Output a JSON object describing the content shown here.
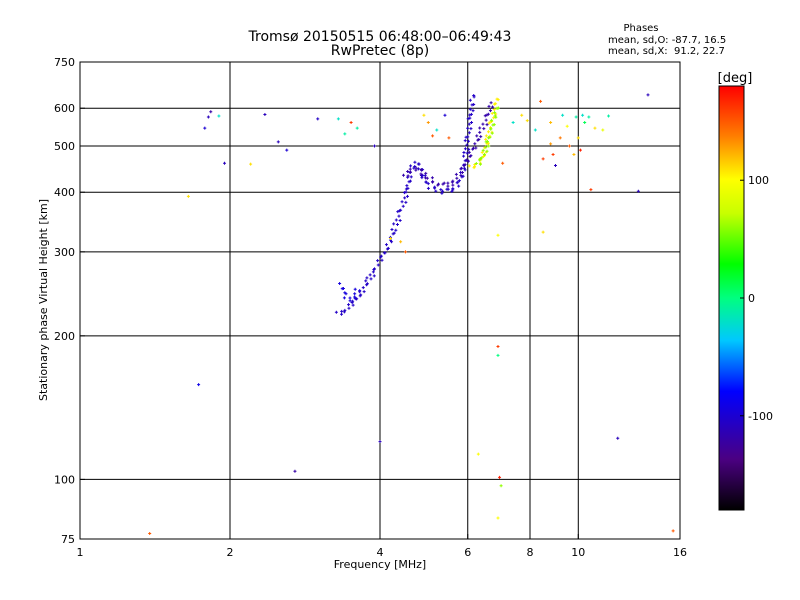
{
  "chart_data": {
    "type": "scatter",
    "title": "Tromsø 20150515 06:48:00–06:49:43",
    "subtitle": "RwPretec (8p)",
    "xlabel": "Frequency [MHz]",
    "ylabel": "Stationary phase Virtual Height [km]",
    "x_scale": "log",
    "y_scale": "log",
    "xlim": [
      1,
      16
    ],
    "ylim": [
      75,
      750
    ],
    "x_ticks": [
      {
        "value": 1,
        "label": "1"
      },
      {
        "value": 2,
        "label": "2"
      },
      {
        "value": 4,
        "label": "4"
      },
      {
        "value": 6,
        "label": "6"
      },
      {
        "value": 8,
        "label": "8"
      },
      {
        "value": 10,
        "label": "10"
      },
      {
        "value": 16,
        "label": "16"
      }
    ],
    "y_ticks": [
      {
        "value": 75,
        "label": "75"
      },
      {
        "value": 100,
        "label": "100"
      },
      {
        "value": 200,
        "label": "200"
      },
      {
        "value": 300,
        "label": "300"
      },
      {
        "value": 400,
        "label": "400"
      },
      {
        "value": 500,
        "label": "500"
      },
      {
        "value": 600,
        "label": "600"
      },
      {
        "value": 750,
        "label": "750"
      }
    ],
    "grid_x": [
      2,
      4,
      6,
      8,
      10
    ],
    "grid_y": [
      100,
      200,
      300,
      400,
      500,
      600
    ],
    "stats": {
      "title": "Phases",
      "line_o": "mean, sd,O: -87.7, 16.5",
      "line_x": "mean, sd,X:  91.2, 22.7"
    },
    "colorbar": {
      "label": "[deg]",
      "min": -180,
      "max": 180,
      "ticks": [
        {
          "value": 100,
          "label": "100"
        },
        {
          "value": 0,
          "label": "0"
        },
        {
          "value": -100,
          "label": "-100"
        }
      ]
    },
    "curves": [
      {
        "points": [
          [
            3.35,
            255
          ],
          [
            3.4,
            245
          ],
          [
            3.45,
            240
          ],
          [
            3.5,
            238
          ],
          [
            3.55,
            242
          ],
          [
            3.6,
            248
          ],
          [
            3.65,
            252
          ]
        ],
        "phase": -95
      },
      {
        "points": [
          [
            3.3,
            222
          ],
          [
            3.4,
            225
          ],
          [
            3.5,
            232
          ],
          [
            3.6,
            240
          ],
          [
            3.7,
            250
          ],
          [
            3.8,
            262
          ],
          [
            3.9,
            275
          ],
          [
            4.0,
            288
          ],
          [
            4.1,
            300
          ],
          [
            4.2,
            318
          ],
          [
            4.3,
            340
          ],
          [
            4.4,
            365
          ],
          [
            4.5,
            392
          ],
          [
            4.55,
            415
          ],
          [
            4.6,
            435
          ],
          [
            4.65,
            450
          ],
          [
            4.7,
            460
          ],
          [
            4.75,
            458
          ],
          [
            4.8,
            450
          ],
          [
            4.85,
            438
          ],
          [
            4.9,
            425
          ],
          [
            5.0,
            415
          ],
          [
            5.1,
            408
          ],
          [
            5.2,
            404
          ],
          [
            5.3,
            402
          ],
          [
            5.5,
            402
          ],
          [
            5.6,
            405
          ],
          [
            5.7,
            412
          ],
          [
            5.8,
            425
          ],
          [
            5.9,
            450
          ],
          [
            5.95,
            480
          ],
          [
            6.0,
            520
          ],
          [
            6.05,
            560
          ],
          [
            6.1,
            600
          ],
          [
            6.15,
            640
          ],
          [
            6.2,
            650
          ]
        ],
        "phase": -105
      },
      {
        "points": [
          [
            4.5,
            430
          ],
          [
            4.6,
            445
          ],
          [
            4.8,
            445
          ],
          [
            5.0,
            430
          ],
          [
            5.2,
            418
          ],
          [
            5.4,
            412
          ],
          [
            5.6,
            420
          ],
          [
            5.8,
            440
          ],
          [
            6.0,
            470
          ],
          [
            6.2,
            500
          ],
          [
            6.4,
            540
          ],
          [
            6.6,
            580
          ],
          [
            6.7,
            620
          ]
        ],
        "phase": -118
      },
      {
        "points": [
          [
            6.1,
            450
          ],
          [
            6.2,
            455
          ],
          [
            6.3,
            460
          ],
          [
            6.4,
            470
          ],
          [
            6.5,
            490
          ],
          [
            6.6,
            520
          ],
          [
            6.7,
            560
          ],
          [
            6.8,
            600
          ],
          [
            6.9,
            630
          ],
          [
            6.95,
            640
          ]
        ],
        "phase": 105
      },
      {
        "points": [
          [
            6.3,
            455
          ],
          [
            6.4,
            470
          ],
          [
            6.55,
            500
          ],
          [
            6.7,
            545
          ],
          [
            6.8,
            580
          ],
          [
            6.9,
            610
          ]
        ],
        "phase": 60
      }
    ],
    "scatter": [
      {
        "x": 1.81,
        "y": 575,
        "phase": -110
      },
      {
        "x": 1.83,
        "y": 590,
        "phase": -120
      },
      {
        "x": 1.78,
        "y": 545,
        "phase": -100
      },
      {
        "x": 1.9,
        "y": 578,
        "phase": -20
      },
      {
        "x": 1.95,
        "y": 460,
        "phase": -110
      },
      {
        "x": 1.65,
        "y": 392,
        "phase": 110
      },
      {
        "x": 1.73,
        "y": 158,
        "phase": -90
      },
      {
        "x": 1.38,
        "y": 77,
        "phase": 150
      },
      {
        "x": 2.35,
        "y": 582,
        "phase": -110
      },
      {
        "x": 2.2,
        "y": 458,
        "phase": 110
      },
      {
        "x": 2.5,
        "y": 510,
        "phase": -110
      },
      {
        "x": 2.6,
        "y": 490,
        "phase": -100
      },
      {
        "x": 2.7,
        "y": 104,
        "phase": -120
      },
      {
        "x": 3.0,
        "y": 570,
        "phase": -105
      },
      {
        "x": 3.3,
        "y": 570,
        "phase": -20
      },
      {
        "x": 3.4,
        "y": 530,
        "phase": -10
      },
      {
        "x": 3.5,
        "y": 560,
        "phase": 160
      },
      {
        "x": 3.6,
        "y": 545,
        "phase": -10
      },
      {
        "x": 3.9,
        "y": 500,
        "phase": -110
      },
      {
        "x": 4.0,
        "y": 120,
        "phase": -110
      },
      {
        "x": 4.2,
        "y": 320,
        "phase": 110
      },
      {
        "x": 4.4,
        "y": 315,
        "phase": 120
      },
      {
        "x": 4.5,
        "y": 300,
        "phase": 150
      },
      {
        "x": 4.9,
        "y": 580,
        "phase": 110
      },
      {
        "x": 5.0,
        "y": 560,
        "phase": 130
      },
      {
        "x": 5.1,
        "y": 525,
        "phase": 150
      },
      {
        "x": 5.2,
        "y": 540,
        "phase": -20
      },
      {
        "x": 5.4,
        "y": 580,
        "phase": -100
      },
      {
        "x": 5.5,
        "y": 520,
        "phase": 150
      },
      {
        "x": 6.3,
        "y": 113,
        "phase": 100
      },
      {
        "x": 6.9,
        "y": 190,
        "phase": 160
      },
      {
        "x": 6.9,
        "y": 182,
        "phase": 0
      },
      {
        "x": 6.95,
        "y": 101,
        "phase": 170
      },
      {
        "x": 7.0,
        "y": 97,
        "phase": 60
      },
      {
        "x": 6.9,
        "y": 83,
        "phase": 100
      },
      {
        "x": 6.9,
        "y": 325,
        "phase": 100
      },
      {
        "x": 7.05,
        "y": 460,
        "phase": 150
      },
      {
        "x": 7.4,
        "y": 560,
        "phase": -20
      },
      {
        "x": 7.7,
        "y": 580,
        "phase": 110
      },
      {
        "x": 7.9,
        "y": 565,
        "phase": 110
      },
      {
        "x": 8.2,
        "y": 540,
        "phase": -20
      },
      {
        "x": 8.4,
        "y": 620,
        "phase": 150
      },
      {
        "x": 8.5,
        "y": 470,
        "phase": 160
      },
      {
        "x": 8.5,
        "y": 330,
        "phase": 110
      },
      {
        "x": 8.8,
        "y": 560,
        "phase": 120
      },
      {
        "x": 8.8,
        "y": 505,
        "phase": 130
      },
      {
        "x": 8.9,
        "y": 480,
        "phase": 160
      },
      {
        "x": 9.0,
        "y": 455,
        "phase": -110
      },
      {
        "x": 9.2,
        "y": 520,
        "phase": 140
      },
      {
        "x": 9.3,
        "y": 580,
        "phase": -20
      },
      {
        "x": 9.5,
        "y": 550,
        "phase": 100
      },
      {
        "x": 9.6,
        "y": 500,
        "phase": 150
      },
      {
        "x": 9.8,
        "y": 480,
        "phase": 120
      },
      {
        "x": 9.9,
        "y": 575,
        "phase": -10
      },
      {
        "x": 10.0,
        "y": 520,
        "phase": 110
      },
      {
        "x": 10.1,
        "y": 490,
        "phase": 170
      },
      {
        "x": 10.2,
        "y": 580,
        "phase": -20
      },
      {
        "x": 10.3,
        "y": 560,
        "phase": 10
      },
      {
        "x": 10.5,
        "y": 575,
        "phase": -10
      },
      {
        "x": 10.6,
        "y": 405,
        "phase": 160
      },
      {
        "x": 10.8,
        "y": 545,
        "phase": 110
      },
      {
        "x": 11.2,
        "y": 540,
        "phase": 90
      },
      {
        "x": 11.5,
        "y": 578,
        "phase": -10
      },
      {
        "x": 12.0,
        "y": 122,
        "phase": -110
      },
      {
        "x": 13.2,
        "y": 402,
        "phase": -110
      },
      {
        "x": 13.8,
        "y": 640,
        "phase": -110
      },
      {
        "x": 15.5,
        "y": 78,
        "phase": 150
      }
    ]
  }
}
